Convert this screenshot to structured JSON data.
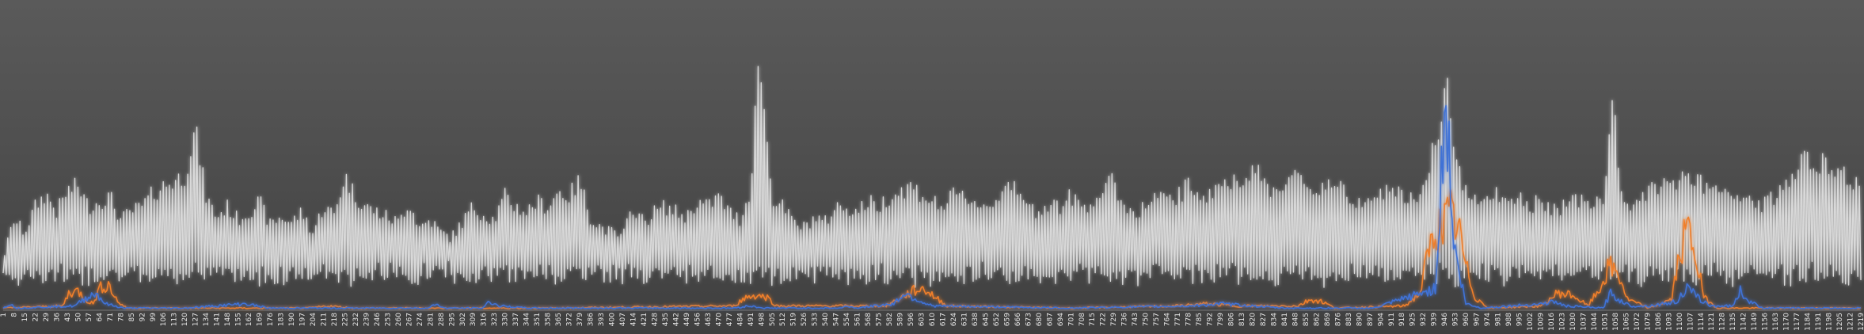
{
  "chart_data": {
    "type": "line",
    "title": "",
    "xlabel": "",
    "ylabel": "",
    "grid": false,
    "legend": "none",
    "x_range": [
      1,
      1219
    ],
    "tick_step": 7,
    "first_tick_labels": [
      "1",
      "8"
    ],
    "ylim": [
      0,
      100
    ],
    "series": [
      {
        "color": "#d9d9d9",
        "anchors": [
          [
            1,
            20
          ],
          [
            8,
            35
          ],
          [
            15,
            30
          ],
          [
            22,
            40
          ],
          [
            29,
            45
          ],
          [
            36,
            38
          ],
          [
            43,
            46
          ],
          [
            50,
            48
          ],
          [
            57,
            40
          ],
          [
            64,
            42
          ],
          [
            71,
            44
          ],
          [
            78,
            35
          ],
          [
            85,
            38
          ],
          [
            92,
            40
          ],
          [
            99,
            45
          ],
          [
            106,
            48
          ],
          [
            113,
            50
          ],
          [
            120,
            52
          ],
          [
            127,
            70
          ],
          [
            134,
            44
          ],
          [
            141,
            36
          ],
          [
            148,
            40
          ],
          [
            155,
            35
          ],
          [
            162,
            38
          ],
          [
            169,
            42
          ],
          [
            176,
            33
          ],
          [
            183,
            36
          ],
          [
            190,
            34
          ],
          [
            197,
            38
          ],
          [
            204,
            30
          ],
          [
            211,
            40
          ],
          [
            218,
            37
          ],
          [
            225,
            52
          ],
          [
            232,
            44
          ],
          [
            239,
            40
          ],
          [
            246,
            38
          ],
          [
            253,
            36
          ],
          [
            260,
            34
          ],
          [
            267,
            42
          ],
          [
            274,
            32
          ],
          [
            281,
            35
          ],
          [
            288,
            30
          ],
          [
            295,
            28
          ],
          [
            302,
            34
          ],
          [
            309,
            40
          ],
          [
            316,
            37
          ],
          [
            323,
            35
          ],
          [
            330,
            44
          ],
          [
            337,
            40
          ],
          [
            344,
            38
          ],
          [
            351,
            42
          ],
          [
            358,
            40
          ],
          [
            365,
            46
          ],
          [
            372,
            44
          ],
          [
            379,
            50
          ],
          [
            386,
            36
          ],
          [
            393,
            32
          ],
          [
            400,
            30
          ],
          [
            407,
            28
          ],
          [
            414,
            40
          ],
          [
            421,
            34
          ],
          [
            428,
            38
          ],
          [
            435,
            40
          ],
          [
            442,
            38
          ],
          [
            449,
            36
          ],
          [
            456,
            42
          ],
          [
            463,
            40
          ],
          [
            470,
            44
          ],
          [
            477,
            38
          ],
          [
            484,
            35
          ],
          [
            491,
            46
          ],
          [
            495,
            90
          ],
          [
            498,
            92
          ],
          [
            505,
            44
          ],
          [
            512,
            40
          ],
          [
            519,
            34
          ],
          [
            526,
            32
          ],
          [
            533,
            36
          ],
          [
            540,
            34
          ],
          [
            547,
            40
          ],
          [
            554,
            40
          ],
          [
            561,
            38
          ],
          [
            568,
            42
          ],
          [
            575,
            40
          ],
          [
            582,
            44
          ],
          [
            589,
            46
          ],
          [
            596,
            48
          ],
          [
            603,
            45
          ],
          [
            610,
            42
          ],
          [
            617,
            40
          ],
          [
            624,
            44
          ],
          [
            631,
            44
          ],
          [
            638,
            42
          ],
          [
            645,
            40
          ],
          [
            652,
            42
          ],
          [
            659,
            52
          ],
          [
            666,
            44
          ],
          [
            673,
            40
          ],
          [
            680,
            38
          ],
          [
            687,
            42
          ],
          [
            694,
            40
          ],
          [
            701,
            44
          ],
          [
            708,
            40
          ],
          [
            715,
            42
          ],
          [
            722,
            46
          ],
          [
            729,
            50
          ],
          [
            736,
            40
          ],
          [
            743,
            38
          ],
          [
            750,
            40
          ],
          [
            757,
            44
          ],
          [
            764,
            42
          ],
          [
            771,
            44
          ],
          [
            778,
            48
          ],
          [
            785,
            46
          ],
          [
            792,
            44
          ],
          [
            799,
            50
          ],
          [
            806,
            48
          ],
          [
            813,
            52
          ],
          [
            820,
            55
          ],
          [
            827,
            50
          ],
          [
            834,
            46
          ],
          [
            841,
            50
          ],
          [
            848,
            52
          ],
          [
            855,
            48
          ],
          [
            862,
            46
          ],
          [
            869,
            50
          ],
          [
            876,
            48
          ],
          [
            883,
            44
          ],
          [
            890,
            42
          ],
          [
            897,
            46
          ],
          [
            904,
            44
          ],
          [
            911,
            48
          ],
          [
            918,
            44
          ],
          [
            925,
            42
          ],
          [
            932,
            46
          ],
          [
            939,
            65
          ],
          [
            944,
            68
          ],
          [
            948,
            95
          ],
          [
            953,
            55
          ],
          [
            960,
            48
          ],
          [
            967,
            44
          ],
          [
            974,
            42
          ],
          [
            981,
            46
          ],
          [
            988,
            40
          ],
          [
            995,
            44
          ],
          [
            1002,
            40
          ],
          [
            1009,
            42
          ],
          [
            1016,
            38
          ],
          [
            1023,
            40
          ],
          [
            1030,
            44
          ],
          [
            1037,
            42
          ],
          [
            1044,
            40
          ],
          [
            1051,
            44
          ],
          [
            1056,
            85
          ],
          [
            1061,
            48
          ],
          [
            1068,
            40
          ],
          [
            1075,
            42
          ],
          [
            1082,
            46
          ],
          [
            1089,
            50
          ],
          [
            1096,
            48
          ],
          [
            1103,
            52
          ],
          [
            1110,
            50
          ],
          [
            1117,
            48
          ],
          [
            1124,
            46
          ],
          [
            1131,
            44
          ],
          [
            1138,
            42
          ],
          [
            1145,
            44
          ],
          [
            1152,
            40
          ],
          [
            1159,
            42
          ],
          [
            1166,
            46
          ],
          [
            1173,
            50
          ],
          [
            1180,
            62
          ],
          [
            1187,
            56
          ],
          [
            1194,
            58
          ],
          [
            1201,
            52
          ],
          [
            1208,
            54
          ],
          [
            1215,
            48
          ],
          [
            1219,
            50
          ]
        ]
      },
      {
        "color": "#f07f2b",
        "anchors": [
          [
            1,
            1
          ],
          [
            40,
            2
          ],
          [
            44,
            8
          ],
          [
            50,
            9
          ],
          [
            55,
            5
          ],
          [
            60,
            3
          ],
          [
            64,
            10
          ],
          [
            70,
            12
          ],
          [
            76,
            4
          ],
          [
            82,
            1
          ],
          [
            200,
            1
          ],
          [
            215,
            2
          ],
          [
            230,
            1
          ],
          [
            360,
            1
          ],
          [
            480,
            2
          ],
          [
            488,
            6
          ],
          [
            495,
            7
          ],
          [
            502,
            6
          ],
          [
            508,
            2
          ],
          [
            580,
            2
          ],
          [
            590,
            6
          ],
          [
            598,
            9
          ],
          [
            605,
            10
          ],
          [
            612,
            6
          ],
          [
            620,
            2
          ],
          [
            700,
            1
          ],
          [
            770,
            2
          ],
          [
            790,
            3
          ],
          [
            810,
            2
          ],
          [
            850,
            2
          ],
          [
            858,
            5
          ],
          [
            866,
            4
          ],
          [
            874,
            1
          ],
          [
            920,
            2
          ],
          [
            930,
            8
          ],
          [
            935,
            25
          ],
          [
            940,
            36
          ],
          [
            945,
            40
          ],
          [
            950,
            44
          ],
          [
            955,
            38
          ],
          [
            960,
            20
          ],
          [
            966,
            6
          ],
          [
            975,
            1
          ],
          [
            1010,
            2
          ],
          [
            1020,
            8
          ],
          [
            1030,
            7
          ],
          [
            1040,
            2
          ],
          [
            1048,
            10
          ],
          [
            1054,
            20
          ],
          [
            1060,
            17
          ],
          [
            1066,
            5
          ],
          [
            1080,
            1
          ],
          [
            1095,
            5
          ],
          [
            1100,
            25
          ],
          [
            1105,
            38
          ],
          [
            1110,
            28
          ],
          [
            1116,
            6
          ],
          [
            1125,
            1
          ],
          [
            1219,
            1
          ]
        ]
      },
      {
        "color": "#3f72d6",
        "anchors": [
          [
            1,
            1
          ],
          [
            5,
            3
          ],
          [
            10,
            1
          ],
          [
            48,
            2
          ],
          [
            56,
            6
          ],
          [
            62,
            8
          ],
          [
            68,
            3
          ],
          [
            80,
            1
          ],
          [
            120,
            1
          ],
          [
            140,
            2
          ],
          [
            160,
            3
          ],
          [
            175,
            1
          ],
          [
            280,
            1
          ],
          [
            285,
            3
          ],
          [
            290,
            1
          ],
          [
            315,
            1
          ],
          [
            320,
            4
          ],
          [
            326,
            2
          ],
          [
            345,
            1
          ],
          [
            480,
            1
          ],
          [
            490,
            2
          ],
          [
            500,
            1
          ],
          [
            550,
            1
          ],
          [
            555,
            2
          ],
          [
            560,
            1
          ],
          [
            585,
            3
          ],
          [
            592,
            8
          ],
          [
            600,
            5
          ],
          [
            610,
            2
          ],
          [
            700,
            1
          ],
          [
            780,
            2
          ],
          [
            800,
            3
          ],
          [
            820,
            2
          ],
          [
            840,
            1
          ],
          [
            900,
            1
          ],
          [
            940,
            10
          ],
          [
            947,
            100
          ],
          [
            952,
            30
          ],
          [
            960,
            3
          ],
          [
            970,
            1
          ],
          [
            1010,
            3
          ],
          [
            1018,
            4
          ],
          [
            1025,
            2
          ],
          [
            1050,
            1
          ],
          [
            1055,
            8
          ],
          [
            1060,
            5
          ],
          [
            1068,
            2
          ],
          [
            1080,
            2
          ],
          [
            1090,
            3
          ],
          [
            1098,
            4
          ],
          [
            1105,
            10
          ],
          [
            1112,
            6
          ],
          [
            1120,
            2
          ],
          [
            1135,
            2
          ],
          [
            1140,
            9
          ],
          [
            1146,
            4
          ],
          [
            1155,
            1
          ],
          [
            1219,
            1
          ]
        ]
      }
    ]
  }
}
